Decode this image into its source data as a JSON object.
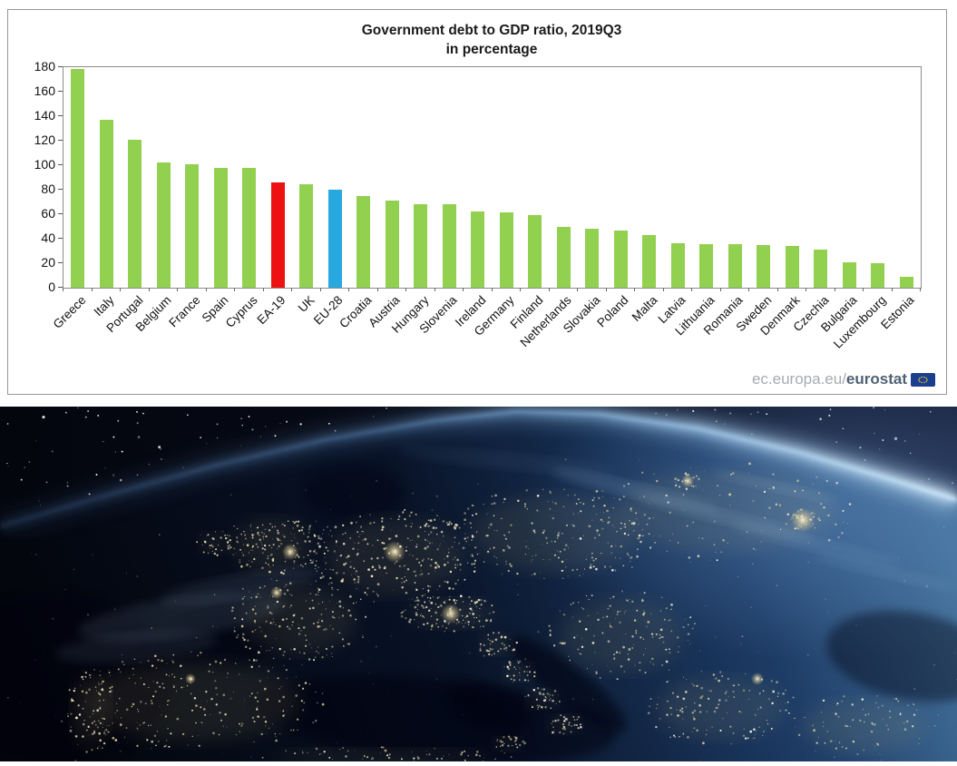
{
  "chart_data": {
    "type": "bar",
    "title": "Government debt to GDP ratio, 2019Q3",
    "subtitle": "in percentage",
    "categories": [
      "Greece",
      "Italy",
      "Portugal",
      "Belgium",
      "France",
      "Spain",
      "Cyprus",
      "EA-19",
      "UK",
      "EU-28",
      "Croatia",
      "Austria",
      "Hungary",
      "Slovenia",
      "Ireland",
      "Germany",
      "Finland",
      "Netherlands",
      "Slovakia",
      "Poland",
      "Malta",
      "Latvia",
      "Lithuania",
      "Romania",
      "Sweden",
      "Denmark",
      "Czechia",
      "Bulgaria",
      "Luxembourg",
      "Estonia"
    ],
    "values": [
      178.2,
      137.3,
      120.5,
      102.3,
      100.5,
      97.9,
      97.8,
      86.1,
      84.2,
      80.1,
      75.0,
      71.1,
      68.2,
      68.1,
      62.6,
      61.2,
      59.4,
      49.3,
      48.4,
      47.0,
      43.3,
      36.4,
      35.9,
      35.4,
      35.1,
      33.8,
      31.4,
      20.6,
      20.2,
      9.2
    ],
    "ylim": [
      0,
      180
    ],
    "yticks": [
      0,
      20,
      40,
      60,
      80,
      100,
      120,
      140,
      160,
      180
    ],
    "xlabel": "",
    "ylabel": "",
    "grid": "off",
    "legend": "none",
    "bar_color_default": "#92D050",
    "bar_color_overrides": {
      "EA-19": "#EE1111",
      "EU-28": "#29A8E0"
    }
  },
  "watermark": {
    "prefix": "ec.europa.eu/",
    "brand": "eurostat"
  },
  "photo": {
    "description": "Satellite view of Europe at night from space, city lights glowing under a blue atmospheric limb"
  }
}
